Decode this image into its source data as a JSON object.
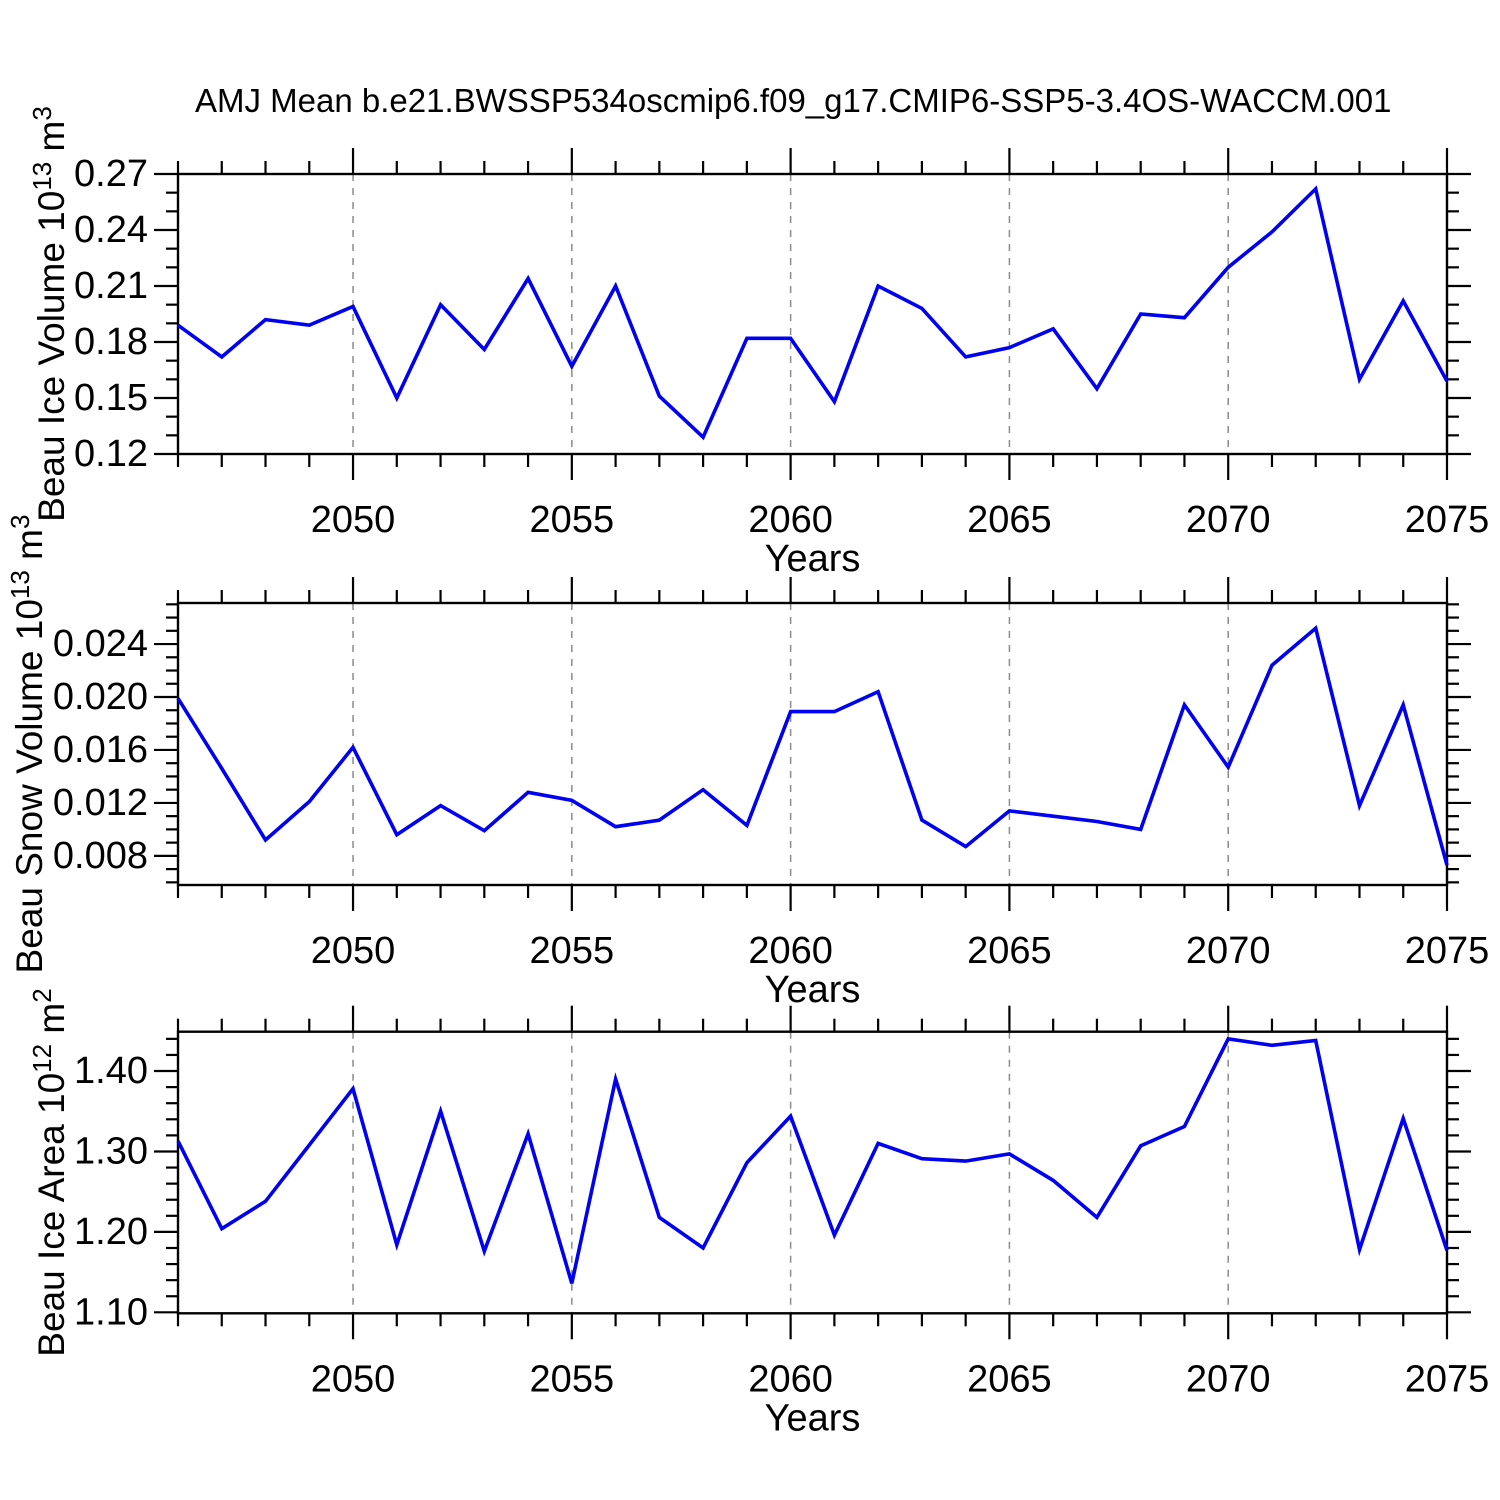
{
  "page": {
    "title": "AMJ Mean b.e21.BWSSP534oscmip6.f09_g17.CMIP6-SSP5-3.4OS-WACCM.001"
  },
  "colors": {
    "line": "#0000F2",
    "grid": "#8C8C8C",
    "axis": "#000000",
    "background": "#FFFFFF"
  },
  "chart_data": [
    {
      "type": "line",
      "name": "Beau Ice Volume",
      "ylabel": "Beau Ice Volume 10^13 m^3",
      "ylabel_parts": [
        {
          "text": "Beau Ice Volume 10"
        },
        {
          "text": "13",
          "sup": true
        },
        {
          "text": " m"
        },
        {
          "text": "3",
          "sup": true
        }
      ],
      "xlabel": "Years",
      "x": [
        2046,
        2047,
        2048,
        2049,
        2050,
        2051,
        2052,
        2053,
        2054,
        2055,
        2056,
        2057,
        2058,
        2059,
        2060,
        2061,
        2062,
        2063,
        2064,
        2065,
        2066,
        2067,
        2068,
        2069,
        2070,
        2071,
        2072,
        2073,
        2074,
        2075
      ],
      "values": [
        0.189,
        0.172,
        0.192,
        0.189,
        0.199,
        0.15,
        0.2,
        0.176,
        0.214,
        0.167,
        0.21,
        0.151,
        0.129,
        0.182,
        0.182,
        0.148,
        0.21,
        0.198,
        0.172,
        0.177,
        0.187,
        0.155,
        0.195,
        0.193,
        0.22,
        0.239,
        0.262,
        0.16,
        0.202,
        0.159
      ],
      "xlim": [
        2046,
        2075
      ],
      "ylim": [
        0.12,
        0.27
      ],
      "xticks": [
        2050,
        2055,
        2060,
        2065,
        2070,
        2075
      ],
      "xtick_labels": [
        "2050",
        "2055",
        "2060",
        "2065",
        "2070",
        "2075"
      ],
      "x_minor_step": 1,
      "yticks": [
        0.12,
        0.15,
        0.18,
        0.21,
        0.24,
        0.27
      ],
      "ytick_labels": [
        "0.12",
        "0.15",
        "0.18",
        "0.21",
        "0.24",
        "0.27"
      ],
      "y_minor_step": 0.01,
      "grid": "vertical-dashed-at-major-xticks",
      "legend": "none"
    },
    {
      "type": "line",
      "name": "Beau Snow Volume",
      "ylabel": "Beau Snow Volume 10^13 m^3",
      "ylabel_parts": [
        {
          "text": "Beau Snow Volume 10"
        },
        {
          "text": "13",
          "sup": true
        },
        {
          "text": " m"
        },
        {
          "text": "3",
          "sup": true
        }
      ],
      "xlabel": "Years",
      "x": [
        2046,
        2047,
        2048,
        2049,
        2050,
        2051,
        2052,
        2053,
        2054,
        2055,
        2056,
        2057,
        2058,
        2059,
        2060,
        2061,
        2062,
        2063,
        2064,
        2065,
        2066,
        2067,
        2068,
        2069,
        2070,
        2071,
        2072,
        2073,
        2074,
        2075
      ],
      "values": [
        0.0199,
        0.0146,
        0.0092,
        0.0121,
        0.0162,
        0.0096,
        0.0118,
        0.0099,
        0.0128,
        0.0122,
        0.0102,
        0.0107,
        0.013,
        0.0103,
        0.0189,
        0.0189,
        0.0204,
        0.0107,
        0.0087,
        0.0114,
        0.011,
        0.0106,
        0.01,
        0.0194,
        0.0147,
        0.0224,
        0.0252,
        0.0118,
        0.0194,
        0.0073
      ],
      "xlim": [
        2046,
        2075
      ],
      "ylim": [
        0.0058,
        0.0271
      ],
      "xticks": [
        2050,
        2055,
        2060,
        2065,
        2070,
        2075
      ],
      "xtick_labels": [
        "2050",
        "2055",
        "2060",
        "2065",
        "2070",
        "2075"
      ],
      "x_minor_step": 1,
      "yticks": [
        0.008,
        0.012,
        0.016,
        0.02,
        0.024
      ],
      "ytick_labels": [
        "0.008",
        "0.012",
        "0.016",
        "0.020",
        "0.024"
      ],
      "y_minor_step": 0.001,
      "grid": "vertical-dashed-at-major-xticks",
      "legend": "none"
    },
    {
      "type": "line",
      "name": "Beau Ice Area",
      "ylabel": "Beau Ice Area 10^12 m^2",
      "ylabel_parts": [
        {
          "text": "Beau Ice Area 10"
        },
        {
          "text": "12",
          "sup": true
        },
        {
          "text": " m"
        },
        {
          "text": "2",
          "sup": true
        }
      ],
      "xlabel": "Years",
      "x": [
        2046,
        2047,
        2048,
        2049,
        2050,
        2051,
        2052,
        2053,
        2054,
        2055,
        2056,
        2057,
        2058,
        2059,
        2060,
        2061,
        2062,
        2063,
        2064,
        2065,
        2066,
        2067,
        2068,
        2069,
        2070,
        2071,
        2072,
        2073,
        2074,
        2075
      ],
      "values": [
        1.313,
        1.204,
        1.238,
        1.308,
        1.378,
        1.184,
        1.35,
        1.176,
        1.322,
        1.136,
        1.39,
        1.218,
        1.18,
        1.286,
        1.344,
        1.196,
        1.31,
        1.291,
        1.288,
        1.297,
        1.264,
        1.218,
        1.307,
        1.331,
        1.44,
        1.432,
        1.438,
        1.178,
        1.341,
        1.177
      ],
      "xlim": [
        2046,
        2075
      ],
      "ylim": [
        1.0988,
        1.4489
      ],
      "xticks": [
        2050,
        2055,
        2060,
        2065,
        2070,
        2075
      ],
      "xtick_labels": [
        "2050",
        "2055",
        "2060",
        "2065",
        "2070",
        "2075"
      ],
      "x_minor_step": 1,
      "yticks": [
        1.1,
        1.2,
        1.3,
        1.4
      ],
      "ytick_labels": [
        "1.10",
        "1.20",
        "1.30",
        "1.40"
      ],
      "y_minor_step": 0.02,
      "grid": "vertical-dashed-at-major-xticks",
      "legend": "none"
    }
  ]
}
